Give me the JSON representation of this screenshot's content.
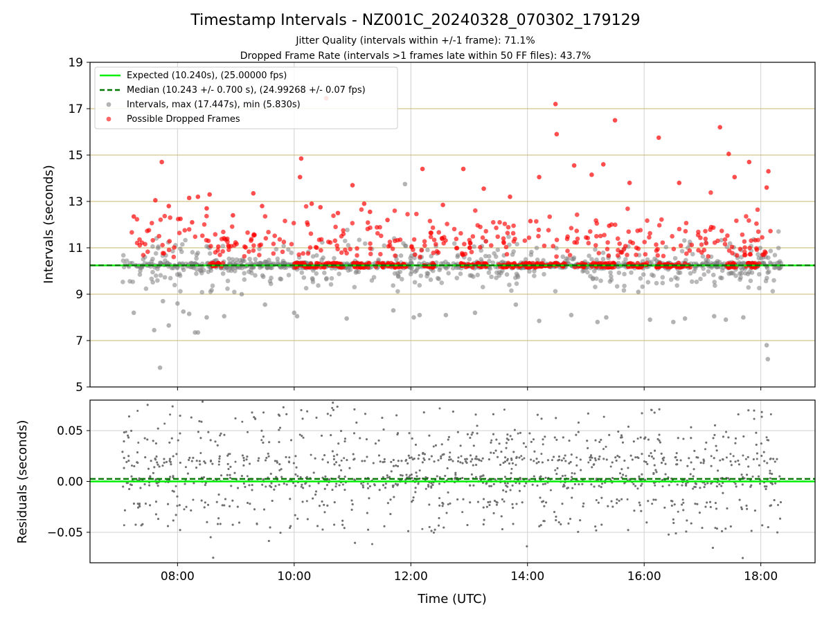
{
  "chart_data": [
    {
      "type": "scatter",
      "title": "Timestamp Intervals - NZ001C_20240328_070302_179129",
      "subtitle_lines": [
        "Jitter Quality (intervals within +/-1 frame): 71.1%",
        "Dropped Frame Rate (intervals >1 frames late within 50 FF files): 43.7%"
      ],
      "xlabel": "",
      "ylabel": "Intervals (seconds)",
      "x_unit": "hours UTC",
      "xlim": [
        6.5,
        18.93
      ],
      "ylim": [
        5,
        19
      ],
      "yticks": [
        5,
        7,
        9,
        11,
        13,
        15,
        17,
        19
      ],
      "xticks": [
        8,
        10,
        12,
        14,
        16,
        18
      ],
      "xtick_labels": [
        "08:00",
        "10:00",
        "12:00",
        "14:00",
        "16:00",
        "18:00"
      ],
      "grid": true,
      "frame_lines": [
        5,
        7,
        9,
        11,
        13,
        15,
        17,
        19
      ],
      "legend_position": "top-left",
      "legend": [
        "Expected (10.240s), (25.00000 fps)",
        "Median (10.243 +/- 0.700 s), (24.99268 +/- 0.07 fps)",
        "Intervals, max (17.447s), min (5.830s)",
        "Possible Dropped Frames"
      ],
      "expected": 10.24,
      "median": 10.243,
      "max_interval": 17.447,
      "min_interval": 5.83,
      "time_range": [
        7.05,
        18.35
      ],
      "colors": {
        "expected": "#00ee00",
        "median": "#007700",
        "intervals": "#808080",
        "dropped": "#ff0000",
        "frame_lines": "#c8b46e"
      },
      "series": [
        {
          "name": "Possible Dropped Frames (sample)",
          "x": [
            7.25,
            7.62,
            7.73,
            7.85,
            8.05,
            8.2,
            8.25,
            8.35,
            8.5,
            8.55,
            8.7,
            8.95,
            9.3,
            9.45,
            10.1,
            10.12,
            10.3,
            10.45,
            10.55,
            10.75,
            11.0,
            11.2,
            11.3,
            11.6,
            12.2,
            12.55,
            12.9,
            13.25,
            13.7,
            14.05,
            14.2,
            14.5,
            14.48,
            14.8,
            15.1,
            15.3,
            15.4,
            15.5,
            15.75,
            16.25,
            16.6,
            17.3,
            17.45,
            17.55,
            17.8,
            18.1,
            18.13
          ],
          "y": [
            12.35,
            13.05,
            14.7,
            12.8,
            12.25,
            13.15,
            12.1,
            13.2,
            12.7,
            13.3,
            11.05,
            12.4,
            13.35,
            12.8,
            14.05,
            14.85,
            12.9,
            12.75,
            17.45,
            12.5,
            13.7,
            12.9,
            12.55,
            12.2,
            14.4,
            12.85,
            14.4,
            13.55,
            13.2,
            12.15,
            14.05,
            15.9,
            17.2,
            14.55,
            14.15,
            14.6,
            11.95,
            16.5,
            13.8,
            15.75,
            13.8,
            16.2,
            15.05,
            14.05,
            14.7,
            13.6,
            14.3
          ]
        },
        {
          "name": "Intervals (sample)",
          "x": [
            7.25,
            7.6,
            7.7,
            7.75,
            7.85,
            8.0,
            8.1,
            8.2,
            8.3,
            8.35,
            8.5,
            8.8,
            9.1,
            9.5,
            10.0,
            10.05,
            10.9,
            11.7,
            11.9,
            12.05,
            12.15,
            12.6,
            13.1,
            13.8,
            14.2,
            14.75,
            15.2,
            15.35,
            15.9,
            16.1,
            16.5,
            16.7,
            17.2,
            17.4,
            17.7,
            18.1,
            18.12
          ],
          "y": [
            8.2,
            7.45,
            5.83,
            8.7,
            7.65,
            8.6,
            8.25,
            8.15,
            7.35,
            7.35,
            8.0,
            8.05,
            9.0,
            8.55,
            8.2,
            8.05,
            7.95,
            8.3,
            13.75,
            8.0,
            8.1,
            8.1,
            8.2,
            8.55,
            7.85,
            8.1,
            7.8,
            8.0,
            9.1,
            7.9,
            7.8,
            7.95,
            8.05,
            7.9,
            8.0,
            6.8,
            6.2
          ]
        }
      ]
    },
    {
      "type": "scatter",
      "ylabel": "Residuals (seconds)",
      "xlabel": "Time (UTC)",
      "ylim": [
        -0.08,
        0.08
      ],
      "yticks": [
        -0.05,
        0.0,
        0.05
      ],
      "ytick_labels": [
        "−0.05",
        "0.00",
        "0.05"
      ],
      "xticks": [
        8,
        10,
        12,
        14,
        16,
        18
      ],
      "xtick_labels": [
        "08:00",
        "10:00",
        "12:00",
        "14:00",
        "16:00",
        "18:00"
      ],
      "grid": true,
      "expected_line": 0.0,
      "median_line": 0.0025,
      "colors": {
        "points": "#707070",
        "expected": "#00ee00",
        "median": "#007700"
      },
      "residual_levels": [
        0.0,
        0.0216,
        0.0432,
        -0.0216,
        0.0648,
        -0.0432
      ],
      "time_range": [
        7.05,
        18.35
      ]
    }
  ]
}
